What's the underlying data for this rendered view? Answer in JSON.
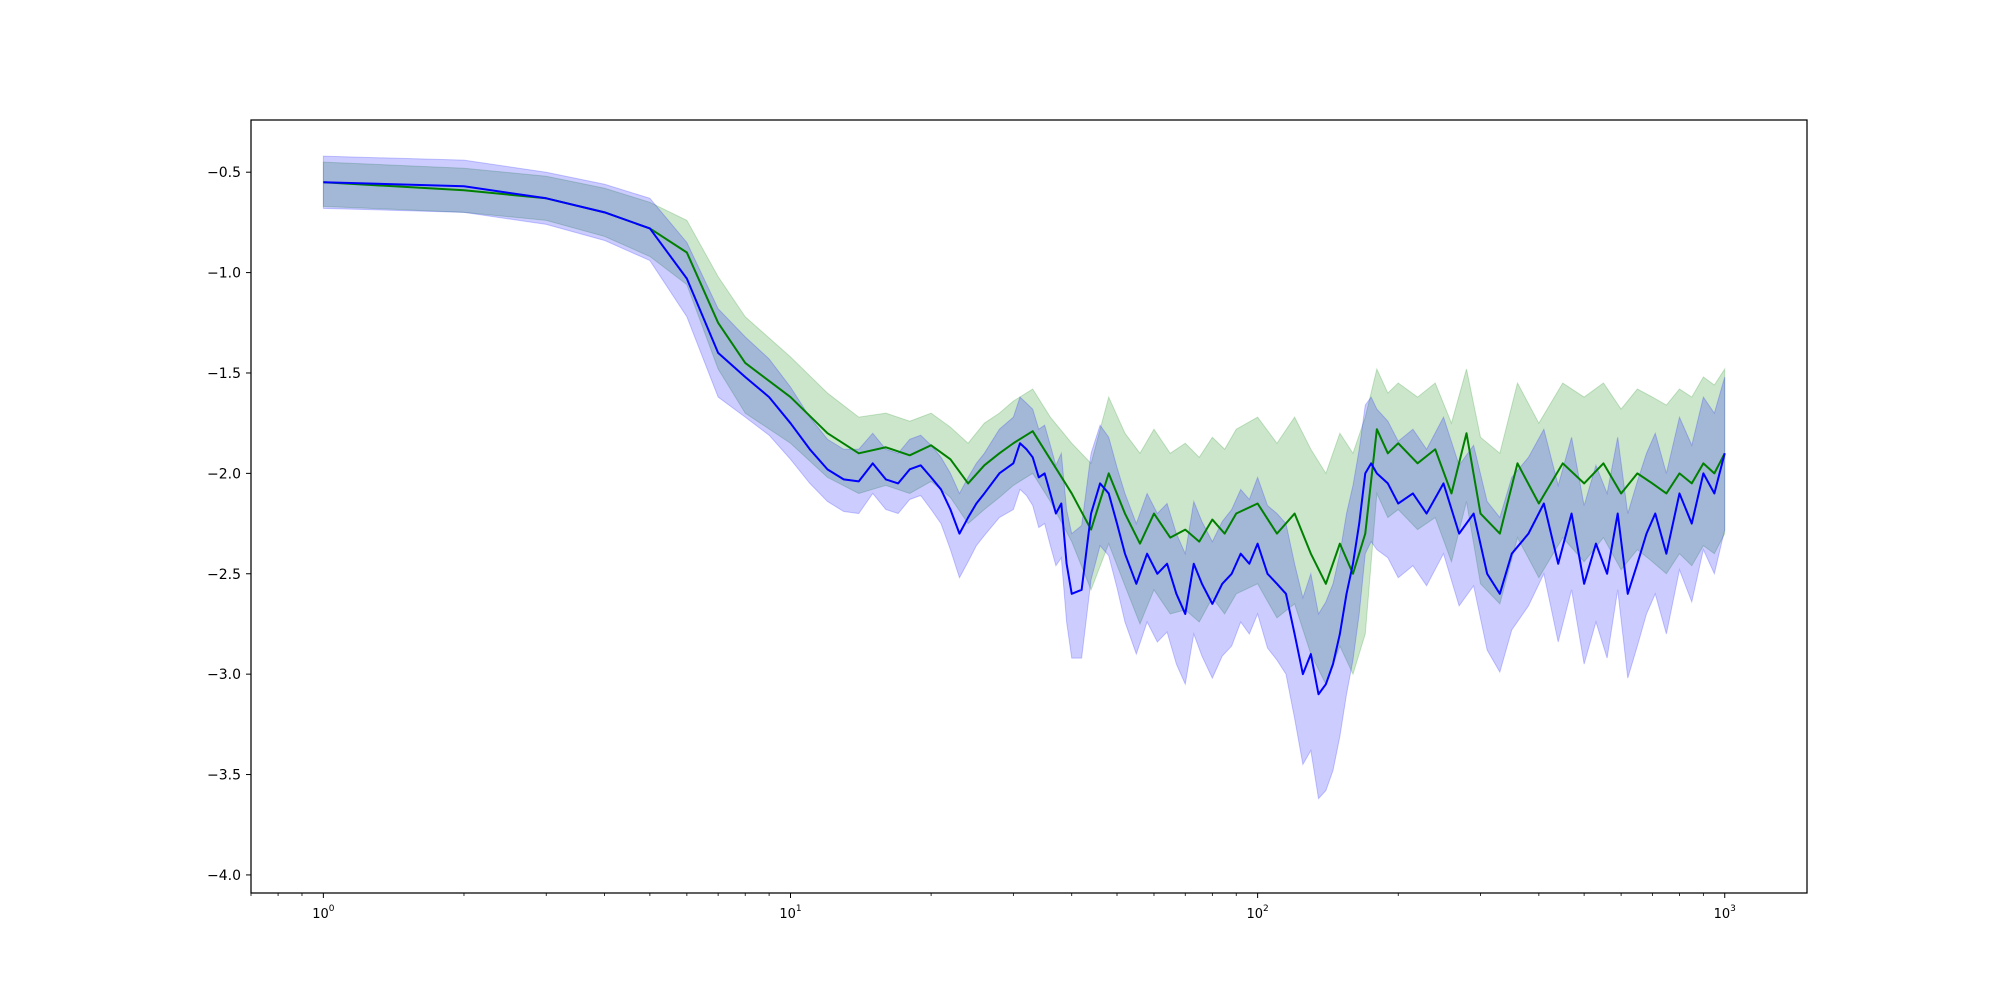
{
  "chart_data": {
    "type": "line",
    "title": "",
    "xlabel": "",
    "ylabel": "",
    "xscale": "log",
    "xlim": [
      0.7,
      1500
    ],
    "ylim": [
      -4.09,
      -0.24
    ],
    "grid": false,
    "legend": "none",
    "x_ticks": [
      {
        "value": 1,
        "base": "10",
        "exp": "0"
      },
      {
        "value": 10,
        "base": "10",
        "exp": "1"
      },
      {
        "value": 100,
        "base": "10",
        "exp": "2"
      },
      {
        "value": 1000,
        "base": "10",
        "exp": "3"
      }
    ],
    "y_ticks": [
      {
        "value": -0.5,
        "label": "−0.5"
      },
      {
        "value": -1.0,
        "label": "−1.0"
      },
      {
        "value": -1.5,
        "label": "−1.5"
      },
      {
        "value": -2.0,
        "label": "−2.0"
      },
      {
        "value": -2.5,
        "label": "−2.5"
      },
      {
        "value": -3.0,
        "label": "−3.0"
      },
      {
        "value": -3.5,
        "label": "−3.5"
      },
      {
        "value": -4.0,
        "label": "−4.0"
      }
    ],
    "series": [
      {
        "color": "#008000",
        "band_color": "#008000",
        "band_opacity": 0.2,
        "x": [
          1,
          2,
          3,
          4,
          5,
          6,
          7,
          8,
          10,
          12,
          14,
          16,
          18,
          20,
          22,
          24,
          26,
          28,
          30,
          33,
          36,
          40,
          44,
          48,
          52,
          56,
          60,
          65,
          70,
          75,
          80,
          85,
          90,
          100,
          110,
          120,
          130,
          140,
          150,
          160,
          170,
          180,
          190,
          200,
          220,
          240,
          260,
          280,
          300,
          330,
          360,
          400,
          450,
          500,
          550,
          600,
          650,
          700,
          750,
          800,
          850,
          900,
          950,
          1000
        ],
        "y": [
          -0.55,
          -0.59,
          -0.63,
          -0.7,
          -0.78,
          -0.9,
          -1.25,
          -1.45,
          -1.62,
          -1.8,
          -1.9,
          -1.87,
          -1.91,
          -1.86,
          -1.93,
          -2.05,
          -1.96,
          -1.9,
          -1.85,
          -1.79,
          -1.93,
          -2.1,
          -2.28,
          -2.0,
          -2.2,
          -2.35,
          -2.2,
          -2.32,
          -2.28,
          -2.34,
          -2.23,
          -2.3,
          -2.2,
          -2.15,
          -2.3,
          -2.2,
          -2.4,
          -2.55,
          -2.35,
          -2.5,
          -2.3,
          -1.78,
          -1.9,
          -1.85,
          -1.95,
          -1.88,
          -2.1,
          -1.8,
          -2.2,
          -2.3,
          -1.95,
          -2.15,
          -1.95,
          -2.05,
          -1.95,
          -2.1,
          -2.0,
          -2.05,
          -2.1,
          -2.0,
          -2.05,
          -1.95,
          -2.0,
          -1.9
        ],
        "upper": [
          -0.45,
          -0.48,
          -0.52,
          -0.58,
          -0.65,
          -0.74,
          -1.02,
          -1.22,
          -1.42,
          -1.6,
          -1.72,
          -1.7,
          -1.74,
          -1.7,
          -1.77,
          -1.85,
          -1.75,
          -1.7,
          -1.64,
          -1.58,
          -1.72,
          -1.85,
          -1.95,
          -1.62,
          -1.8,
          -1.9,
          -1.78,
          -1.9,
          -1.85,
          -1.92,
          -1.82,
          -1.88,
          -1.78,
          -1.72,
          -1.85,
          -1.72,
          -1.88,
          -2.0,
          -1.8,
          -1.9,
          -1.72,
          -1.48,
          -1.6,
          -1.55,
          -1.62,
          -1.55,
          -1.75,
          -1.48,
          -1.82,
          -1.9,
          -1.55,
          -1.75,
          -1.55,
          -1.62,
          -1.55,
          -1.68,
          -1.58,
          -1.62,
          -1.66,
          -1.58,
          -1.62,
          -1.52,
          -1.56,
          -1.48
        ],
        "lower": [
          -0.67,
          -0.7,
          -0.74,
          -0.82,
          -0.92,
          -1.06,
          -1.48,
          -1.7,
          -1.85,
          -2.02,
          -2.1,
          -2.06,
          -2.1,
          -2.04,
          -2.12,
          -2.25,
          -2.18,
          -2.12,
          -2.06,
          -2.0,
          -2.14,
          -2.34,
          -2.58,
          -2.35,
          -2.56,
          -2.75,
          -2.58,
          -2.7,
          -2.68,
          -2.74,
          -2.62,
          -2.7,
          -2.6,
          -2.55,
          -2.72,
          -2.65,
          -2.9,
          -3.05,
          -2.86,
          -3.0,
          -2.8,
          -2.1,
          -2.22,
          -2.18,
          -2.28,
          -2.22,
          -2.44,
          -2.14,
          -2.55,
          -2.65,
          -2.32,
          -2.52,
          -2.32,
          -2.44,
          -2.32,
          -2.48,
          -2.38,
          -2.44,
          -2.5,
          -2.4,
          -2.46,
          -2.36,
          -2.4,
          -2.3
        ]
      },
      {
        "color": "#0000ff",
        "band_color": "#0000ff",
        "band_opacity": 0.2,
        "x": [
          1,
          2,
          3,
          4,
          5,
          6,
          7,
          8,
          9,
          10,
          11,
          12,
          13,
          14,
          15,
          16,
          17,
          18,
          19,
          20,
          21,
          22,
          23,
          24,
          25,
          26,
          28,
          30,
          31,
          32,
          33,
          34,
          35,
          36,
          37,
          38,
          39,
          40,
          42,
          44,
          46,
          48,
          50,
          52,
          55,
          58,
          61,
          64,
          67,
          70,
          73,
          76,
          80,
          84,
          88,
          92,
          96,
          100,
          105,
          110,
          115,
          120,
          125,
          130,
          135,
          140,
          145,
          150,
          155,
          160,
          165,
          170,
          175,
          180,
          190,
          200,
          215,
          230,
          250,
          270,
          290,
          310,
          330,
          350,
          380,
          410,
          440,
          470,
          500,
          530,
          560,
          590,
          620,
          650,
          680,
          710,
          750,
          800,
          850,
          900,
          950,
          1000
        ],
        "y": [
          -0.55,
          -0.57,
          -0.63,
          -0.7,
          -0.78,
          -1.03,
          -1.4,
          -1.52,
          -1.62,
          -1.75,
          -1.88,
          -1.98,
          -2.03,
          -2.04,
          -1.95,
          -2.03,
          -2.05,
          -1.98,
          -1.96,
          -2.02,
          -2.08,
          -2.18,
          -2.3,
          -2.22,
          -2.15,
          -2.1,
          -2.0,
          -1.95,
          -1.85,
          -1.88,
          -1.92,
          -2.02,
          -2.0,
          -2.1,
          -2.2,
          -2.15,
          -2.45,
          -2.6,
          -2.58,
          -2.2,
          -2.05,
          -2.1,
          -2.25,
          -2.4,
          -2.55,
          -2.4,
          -2.5,
          -2.45,
          -2.6,
          -2.7,
          -2.45,
          -2.55,
          -2.65,
          -2.55,
          -2.5,
          -2.4,
          -2.45,
          -2.35,
          -2.5,
          -2.55,
          -2.6,
          -2.8,
          -3.0,
          -2.9,
          -3.1,
          -3.05,
          -2.95,
          -2.8,
          -2.6,
          -2.45,
          -2.25,
          -2.0,
          -1.95,
          -2.0,
          -2.05,
          -2.15,
          -2.1,
          -2.2,
          -2.05,
          -2.3,
          -2.2,
          -2.5,
          -2.6,
          -2.4,
          -2.3,
          -2.15,
          -2.45,
          -2.2,
          -2.55,
          -2.35,
          -2.5,
          -2.2,
          -2.6,
          -2.45,
          -2.3,
          -2.2,
          -2.4,
          -2.1,
          -2.25,
          -2.0,
          -2.1,
          -1.9
        ],
        "upper": [
          -0.42,
          -0.44,
          -0.5,
          -0.56,
          -0.63,
          -0.85,
          -1.18,
          -1.32,
          -1.43,
          -1.57,
          -1.72,
          -1.83,
          -1.88,
          -1.88,
          -1.8,
          -1.88,
          -1.9,
          -1.83,
          -1.81,
          -1.86,
          -1.92,
          -2.0,
          -2.1,
          -2.02,
          -1.95,
          -1.9,
          -1.78,
          -1.72,
          -1.62,
          -1.65,
          -1.68,
          -1.78,
          -1.76,
          -1.86,
          -1.96,
          -1.9,
          -2.18,
          -2.3,
          -2.26,
          -1.9,
          -1.76,
          -1.82,
          -1.97,
          -2.1,
          -2.25,
          -2.1,
          -2.2,
          -2.15,
          -2.3,
          -2.4,
          -2.14,
          -2.24,
          -2.34,
          -2.24,
          -2.18,
          -2.08,
          -2.13,
          -2.02,
          -2.16,
          -2.2,
          -2.25,
          -2.45,
          -2.62,
          -2.5,
          -2.7,
          -2.64,
          -2.55,
          -2.4,
          -2.2,
          -2.06,
          -1.88,
          -1.66,
          -1.62,
          -1.68,
          -1.74,
          -1.84,
          -1.78,
          -1.88,
          -1.72,
          -1.96,
          -1.86,
          -2.14,
          -2.22,
          -2.02,
          -1.92,
          -1.78,
          -2.06,
          -1.82,
          -2.16,
          -1.96,
          -2.1,
          -1.82,
          -2.2,
          -2.04,
          -1.9,
          -1.8,
          -2.0,
          -1.72,
          -1.86,
          -1.62,
          -1.7,
          -1.52
        ],
        "lower": [
          -0.68,
          -0.7,
          -0.76,
          -0.84,
          -0.94,
          -1.22,
          -1.62,
          -1.72,
          -1.81,
          -1.93,
          -2.05,
          -2.14,
          -2.19,
          -2.2,
          -2.1,
          -2.18,
          -2.2,
          -2.13,
          -2.11,
          -2.18,
          -2.25,
          -2.38,
          -2.52,
          -2.44,
          -2.36,
          -2.31,
          -2.22,
          -2.18,
          -2.08,
          -2.11,
          -2.16,
          -2.27,
          -2.25,
          -2.36,
          -2.46,
          -2.42,
          -2.74,
          -2.92,
          -2.92,
          -2.53,
          -2.36,
          -2.41,
          -2.57,
          -2.74,
          -2.9,
          -2.74,
          -2.84,
          -2.79,
          -2.95,
          -3.05,
          -2.8,
          -2.91,
          -3.02,
          -2.91,
          -2.86,
          -2.74,
          -2.8,
          -2.7,
          -2.87,
          -2.93,
          -3.0,
          -3.22,
          -3.45,
          -3.38,
          -3.62,
          -3.58,
          -3.48,
          -3.31,
          -3.1,
          -2.93,
          -2.7,
          -2.4,
          -2.34,
          -2.38,
          -2.42,
          -2.52,
          -2.46,
          -2.56,
          -2.4,
          -2.66,
          -2.56,
          -2.88,
          -2.99,
          -2.78,
          -2.66,
          -2.5,
          -2.84,
          -2.58,
          -2.95,
          -2.74,
          -2.92,
          -2.58,
          -3.02,
          -2.86,
          -2.7,
          -2.6,
          -2.8,
          -2.48,
          -2.64,
          -2.38,
          -2.5,
          -2.28
        ]
      }
    ]
  }
}
